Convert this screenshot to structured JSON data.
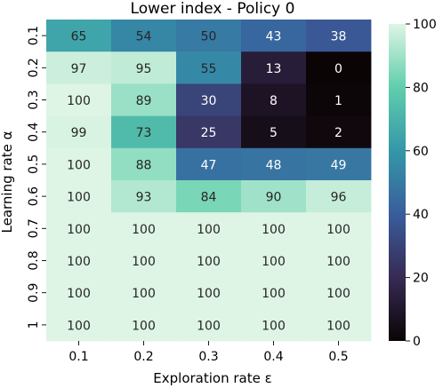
{
  "chart_data": {
    "type": "heatmap",
    "title": "Lower index - Policy 0",
    "xlabel": "Exploration rate ε",
    "ylabel": "Learning rate α",
    "x_categories": [
      "0.1",
      "0.2",
      "0.3",
      "0.4",
      "0.5"
    ],
    "y_categories": [
      "0.1",
      "0.2",
      "0.3",
      "0.4",
      "0.5",
      "0.6",
      "0.7",
      "0.8",
      "0.9",
      "1"
    ],
    "values": [
      [
        65,
        54,
        50,
        43,
        38
      ],
      [
        97,
        95,
        55,
        13,
        0
      ],
      [
        100,
        89,
        30,
        8,
        1
      ],
      [
        99,
        73,
        25,
        5,
        2
      ],
      [
        100,
        88,
        47,
        48,
        49
      ],
      [
        100,
        93,
        84,
        90,
        96
      ],
      [
        100,
        100,
        100,
        100,
        100
      ],
      [
        100,
        100,
        100,
        100,
        100
      ],
      [
        100,
        100,
        100,
        100,
        100
      ],
      [
        100,
        100,
        100,
        100,
        100
      ]
    ],
    "colorbar": {
      "min": 0,
      "max": 100,
      "ticks": [
        "0",
        "20",
        "40",
        "60",
        "80",
        "100"
      ],
      "colormap": "mako",
      "stops": [
        "#0b0405",
        "#382a54",
        "#395d9c",
        "#3497a9",
        "#60ceac",
        "#def5e5"
      ]
    },
    "annotations": true,
    "grid": false
  }
}
